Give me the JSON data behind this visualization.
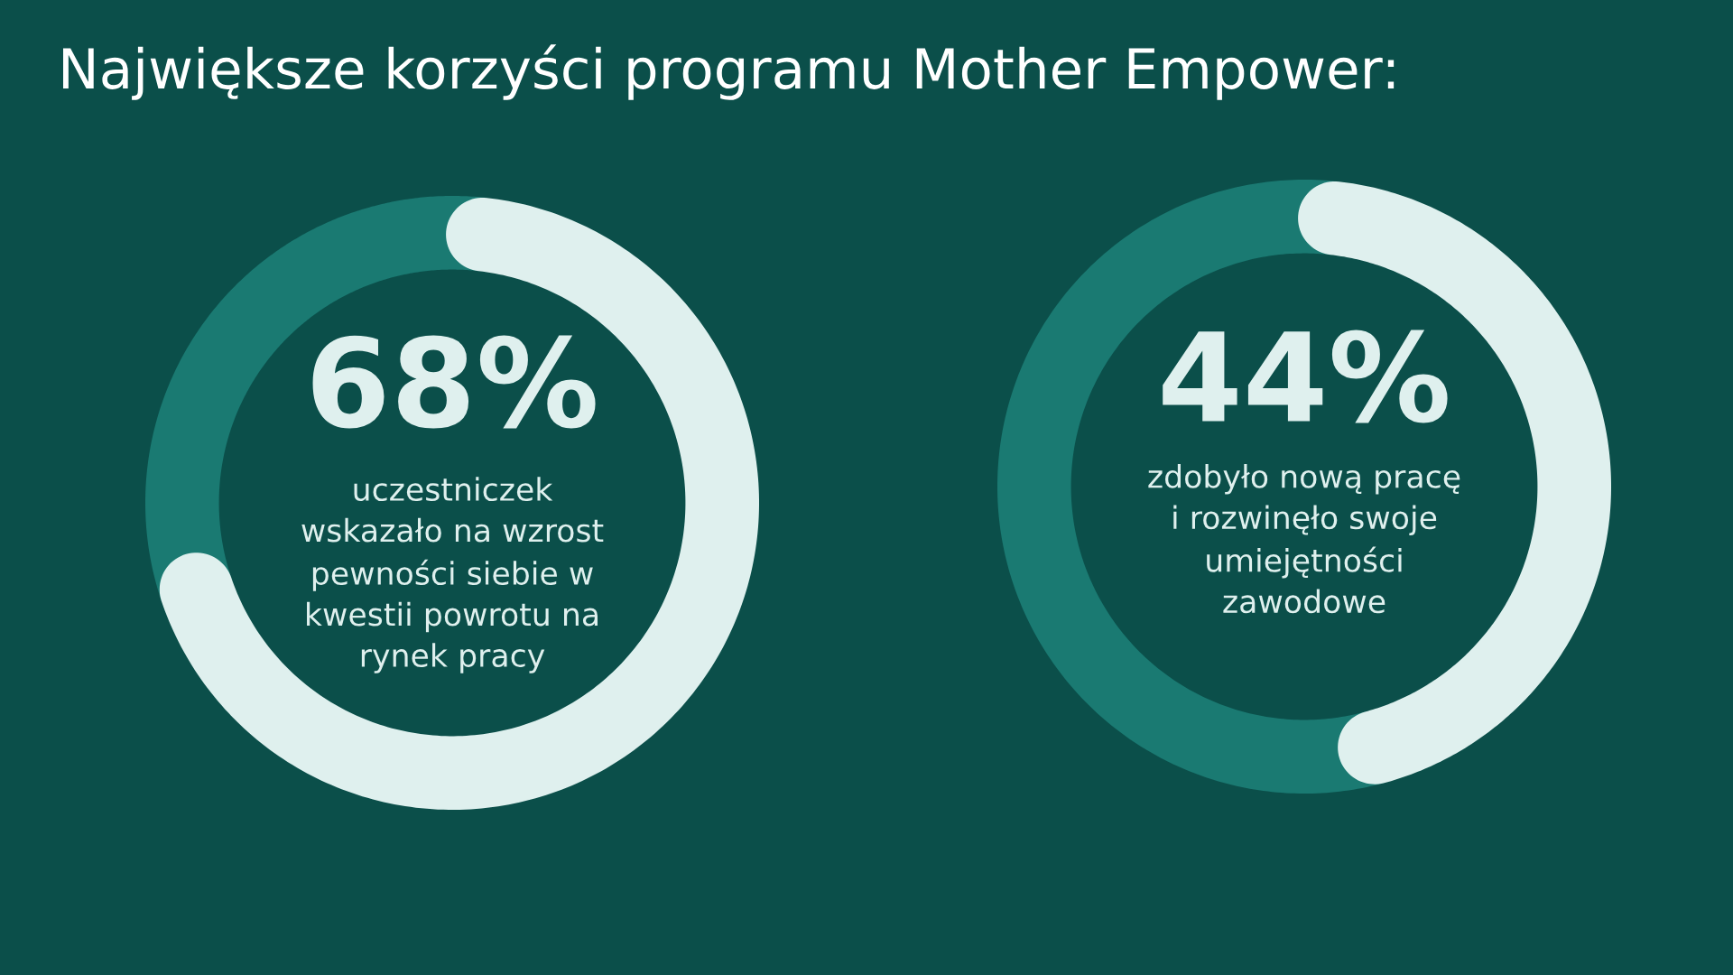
{
  "chart_data": [
    {
      "type": "donut",
      "title": "Największe korzyści programu Mother Empower:",
      "categories": [
        null,
        null
      ],
      "values": [
        68,
        32
      ],
      "colors": [
        "#dff0ee",
        "#1a7a72"
      ],
      "value_labels": [
        "68%",
        null
      ],
      "annotations": [
        "uczestniczek\nwskazało na wzrost\npewności siebie w\nkwestii powrotu na\nrynek pracy"
      ]
    },
    {
      "type": "donut",
      "categories": [
        null,
        null
      ],
      "values": [
        44,
        56
      ],
      "colors": [
        "#dff0ee",
        "#1a7a72"
      ],
      "value_labels": [
        "44%",
        null
      ],
      "annotations": [
        "zdobyło nową pracę\ni rozwinęło swoje\numiejętności\nzawodowe"
      ]
    }
  ]
}
